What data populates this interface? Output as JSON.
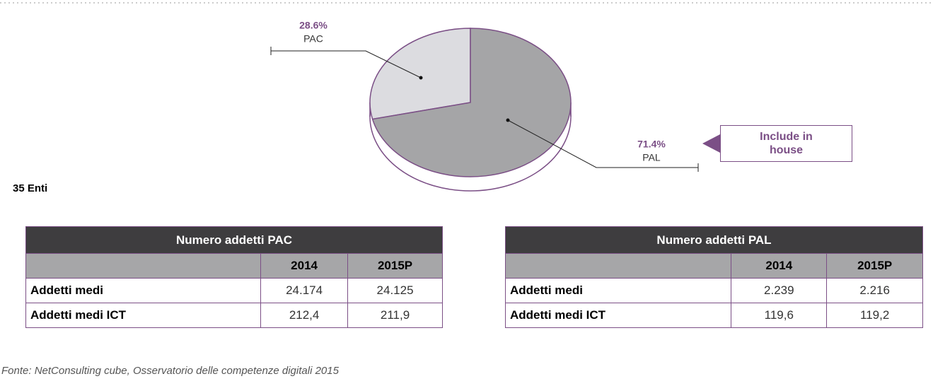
{
  "chart_data": {
    "type": "pie",
    "categories": [
      "PAC",
      "PAL"
    ],
    "values": [
      28.6,
      71.4
    ],
    "value_labels": [
      "28.6%",
      "71.4%"
    ],
    "colors": [
      "#dcdce0",
      "#a5a5a7"
    ],
    "edge_color": "#7b4f86",
    "annotation": "Include in house",
    "note": "35 Enti"
  },
  "tables": [
    {
      "title": "Numero addetti PAC",
      "columns": [
        "2014",
        "2015P"
      ],
      "rows": [
        {
          "label": "Addetti medi",
          "cells": [
            "24.174",
            "24.125"
          ]
        },
        {
          "label": "Addetti medi ICT",
          "cells": [
            "212,4",
            "211,9"
          ]
        }
      ]
    },
    {
      "title": "Numero addetti PAL",
      "columns": [
        "2014",
        "2015P"
      ],
      "rows": [
        {
          "label": "Addetti medi",
          "cells": [
            "2.239",
            "2.216"
          ]
        },
        {
          "label": "Addetti medi ICT",
          "cells": [
            "119,6",
            "119,2"
          ]
        }
      ]
    }
  ],
  "source": "Fonte: NetConsulting cube, Osservatorio delle competenze digitali 2015"
}
